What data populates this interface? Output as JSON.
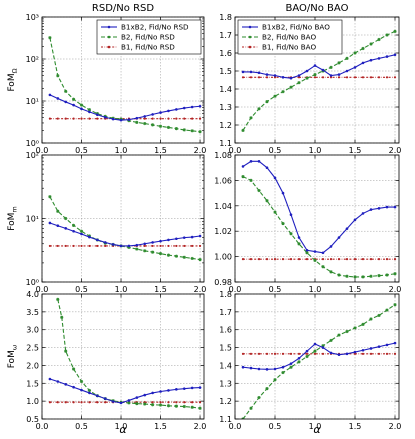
{
  "figure": {
    "col_titles": [
      "RSD/No RSD",
      "BAO/No BAO"
    ],
    "xlabel": "α",
    "row_ylabels": [
      {
        "main": "FoM",
        "sub": "Ω"
      },
      {
        "main": "FoM",
        "sub": "m"
      },
      {
        "main": "FoM",
        "sub": "ω"
      }
    ]
  },
  "colors": {
    "B1xB2": "#1f1fbf",
    "B2": "#2e8b2e",
    "B1": "#b22222"
  },
  "chart_data": [
    {
      "type": "line",
      "panel": "row1-left",
      "yscale": "log",
      "xlim": [
        0,
        2.05
      ],
      "ylim": [
        1,
        1000
      ],
      "xticks": [
        0.0,
        0.5,
        1.0,
        1.5,
        2.0
      ],
      "xtick_labels": [
        "0.0",
        "0.5",
        "1.0",
        "1.5",
        "2.0"
      ],
      "yticks": [
        1,
        10,
        100,
        1000
      ],
      "ytick_labels": [
        "10⁰",
        "10¹",
        "10²",
        "10³"
      ],
      "grid": true,
      "legend": "top-right",
      "series": [
        {
          "name": "B1xB2, Fid/No RSD",
          "color_key": "B1xB2",
          "x": [
            0.1,
            0.2,
            0.3,
            0.4,
            0.5,
            0.6,
            0.7,
            0.8,
            0.9,
            1.0,
            1.1,
            1.2,
            1.3,
            1.4,
            1.5,
            1.6,
            1.7,
            1.8,
            1.9,
            2.0
          ],
          "values": [
            14,
            11.5,
            9.5,
            8,
            6.5,
            5.5,
            4.7,
            4.1,
            3.7,
            3.5,
            3.6,
            3.9,
            4.3,
            4.8,
            5.3,
            5.8,
            6.3,
            6.8,
            7.2,
            7.5
          ]
        },
        {
          "name": "B2, Fid/No RSD",
          "color_key": "B2",
          "x": [
            0.1,
            0.2,
            0.3,
            0.4,
            0.5,
            0.6,
            0.7,
            0.8,
            0.9,
            1.0,
            1.1,
            1.2,
            1.3,
            1.4,
            1.5,
            1.6,
            1.7,
            1.8,
            1.9,
            2.0
          ],
          "values": [
            320,
            40,
            17,
            11,
            8,
            6.2,
            5,
            4.3,
            3.9,
            3.7,
            3.4,
            3.1,
            2.9,
            2.7,
            2.5,
            2.35,
            2.2,
            2.05,
            1.95,
            1.85
          ]
        },
        {
          "name": "B1, Fid/No RSD",
          "color_key": "B1",
          "x": [
            0.1,
            0.2,
            0.3,
            0.4,
            0.5,
            0.6,
            0.7,
            0.8,
            0.9,
            1.0,
            1.1,
            1.2,
            1.3,
            1.4,
            1.5,
            1.6,
            1.7,
            1.8,
            1.9,
            2.0
          ],
          "values": [
            3.8,
            3.8,
            3.8,
            3.8,
            3.8,
            3.8,
            3.8,
            3.8,
            3.8,
            3.8,
            3.8,
            3.8,
            3.8,
            3.8,
            3.8,
            3.8,
            3.8,
            3.8,
            3.8,
            3.8
          ]
        }
      ]
    },
    {
      "type": "line",
      "panel": "row1-right",
      "yscale": "linear",
      "xlim": [
        0,
        2.05
      ],
      "ylim": [
        1.1,
        1.8
      ],
      "xticks": [
        0.0,
        0.5,
        1.0,
        1.5,
        2.0
      ],
      "xtick_labels": [
        "0.0",
        "0.5",
        "1.0",
        "1.5",
        "2.0"
      ],
      "yticks": [
        1.1,
        1.2,
        1.3,
        1.4,
        1.5,
        1.6,
        1.7,
        1.8
      ],
      "ytick_labels": [
        "1.1",
        "1.2",
        "1.3",
        "1.4",
        "1.5",
        "1.6",
        "1.7",
        "1.8"
      ],
      "grid": true,
      "legend": "top-left",
      "series": [
        {
          "name": "B1xB2, Fid/No BAO",
          "color_key": "B1xB2",
          "x": [
            0.1,
            0.2,
            0.3,
            0.4,
            0.5,
            0.6,
            0.7,
            0.8,
            0.9,
            1.0,
            1.1,
            1.2,
            1.3,
            1.4,
            1.5,
            1.6,
            1.7,
            1.8,
            1.9,
            2.0
          ],
          "values": [
            1.495,
            1.495,
            1.49,
            1.48,
            1.475,
            1.465,
            1.46,
            1.475,
            1.5,
            1.53,
            1.505,
            1.475,
            1.48,
            1.5,
            1.52,
            1.545,
            1.56,
            1.57,
            1.58,
            1.59
          ]
        },
        {
          "name": "B2, Fid/No BAO",
          "color_key": "B2",
          "x": [
            0.1,
            0.2,
            0.3,
            0.4,
            0.5,
            0.6,
            0.7,
            0.8,
            0.9,
            1.0,
            1.1,
            1.2,
            1.3,
            1.4,
            1.5,
            1.6,
            1.7,
            1.8,
            1.9,
            2.0
          ],
          "values": [
            1.17,
            1.24,
            1.29,
            1.33,
            1.36,
            1.385,
            1.41,
            1.435,
            1.46,
            1.48,
            1.5,
            1.52,
            1.545,
            1.57,
            1.6,
            1.625,
            1.65,
            1.675,
            1.7,
            1.72
          ]
        },
        {
          "name": "B1, Fid/No BAO",
          "color_key": "B1",
          "x": [
            0.1,
            0.2,
            0.3,
            0.4,
            0.5,
            0.6,
            0.7,
            0.8,
            0.9,
            1.0,
            1.1,
            1.2,
            1.3,
            1.4,
            1.5,
            1.6,
            1.7,
            1.8,
            1.9,
            2.0
          ],
          "values": [
            1.465,
            1.465,
            1.465,
            1.465,
            1.465,
            1.465,
            1.465,
            1.465,
            1.465,
            1.465,
            1.465,
            1.465,
            1.465,
            1.465,
            1.465,
            1.465,
            1.465,
            1.465,
            1.465,
            1.465
          ]
        }
      ]
    },
    {
      "type": "line",
      "panel": "row2-left",
      "yscale": "log",
      "xlim": [
        0,
        2.05
      ],
      "ylim": [
        1,
        100
      ],
      "xticks": [
        0.0,
        0.5,
        1.0,
        1.5,
        2.0
      ],
      "xtick_labels": [
        "0.0",
        "0.5",
        "1.0",
        "1.5",
        "2.0"
      ],
      "yticks": [
        1,
        10,
        100
      ],
      "ytick_labels": [
        "10⁰",
        "10¹",
        "10²"
      ],
      "grid": true,
      "series": [
        {
          "color_key": "B1xB2",
          "x": [
            0.1,
            0.2,
            0.3,
            0.4,
            0.5,
            0.6,
            0.7,
            0.8,
            0.9,
            1.0,
            1.1,
            1.2,
            1.3,
            1.4,
            1.5,
            1.6,
            1.7,
            1.8,
            1.9,
            2.0
          ],
          "values": [
            8.5,
            7.7,
            7,
            6.3,
            5.7,
            5.1,
            4.6,
            4.2,
            3.9,
            3.7,
            3.7,
            3.8,
            4,
            4.2,
            4.4,
            4.6,
            4.8,
            5,
            5.1,
            5.3
          ]
        },
        {
          "color_key": "B2",
          "x": [
            0.1,
            0.2,
            0.3,
            0.4,
            0.5,
            0.6,
            0.7,
            0.8,
            0.9,
            1.0,
            1.1,
            1.2,
            1.3,
            1.4,
            1.5,
            1.6,
            1.7,
            1.8,
            1.9,
            2.0
          ],
          "values": [
            22,
            13,
            10,
            7.8,
            6.3,
            5.3,
            4.6,
            4.1,
            3.9,
            3.7,
            3.5,
            3.3,
            3.1,
            2.95,
            2.8,
            2.65,
            2.55,
            2.45,
            2.35,
            2.25
          ]
        },
        {
          "color_key": "B1",
          "x": [
            0.1,
            0.2,
            0.3,
            0.4,
            0.5,
            0.6,
            0.7,
            0.8,
            0.9,
            1.0,
            1.1,
            1.2,
            1.3,
            1.4,
            1.5,
            1.6,
            1.7,
            1.8,
            1.9,
            2.0
          ],
          "values": [
            3.7,
            3.7,
            3.7,
            3.7,
            3.7,
            3.7,
            3.7,
            3.7,
            3.7,
            3.7,
            3.7,
            3.7,
            3.7,
            3.7,
            3.7,
            3.7,
            3.7,
            3.7,
            3.7,
            3.7
          ]
        }
      ]
    },
    {
      "type": "line",
      "panel": "row2-right",
      "yscale": "linear",
      "xlim": [
        0,
        2.05
      ],
      "ylim": [
        0.98,
        1.08
      ],
      "xticks": [
        0.0,
        0.5,
        1.0,
        1.5,
        2.0
      ],
      "xtick_labels": [
        "0.0",
        "0.5",
        "1.0",
        "1.5",
        "2.0"
      ],
      "yticks": [
        0.98,
        1.0,
        1.02,
        1.04,
        1.06,
        1.08
      ],
      "ytick_labels": [
        "0.98",
        "1.00",
        "1.02",
        "1.04",
        "1.06",
        "1.08"
      ],
      "grid": true,
      "series": [
        {
          "color_key": "B1xB2",
          "x": [
            0.1,
            0.2,
            0.3,
            0.4,
            0.5,
            0.6,
            0.7,
            0.8,
            0.9,
            1.0,
            1.1,
            1.2,
            1.3,
            1.4,
            1.5,
            1.6,
            1.7,
            1.8,
            1.9,
            2.0
          ],
          "values": [
            1.071,
            1.075,
            1.075,
            1.07,
            1.062,
            1.05,
            1.033,
            1.015,
            1.005,
            1.004,
            1.003,
            1.008,
            1.015,
            1.022,
            1.029,
            1.034,
            1.037,
            1.038,
            1.039,
            1.039
          ]
        },
        {
          "color_key": "B2",
          "x": [
            0.1,
            0.2,
            0.3,
            0.4,
            0.5,
            0.6,
            0.7,
            0.8,
            0.9,
            1.0,
            1.1,
            1.2,
            1.3,
            1.4,
            1.5,
            1.6,
            1.7,
            1.8,
            1.9,
            2.0
          ],
          "values": [
            1.063,
            1.06,
            1.052,
            1.044,
            1.035,
            1.026,
            1.018,
            1.01,
            1.003,
            0.997,
            0.992,
            0.988,
            0.9855,
            0.9845,
            0.984,
            0.984,
            0.9845,
            0.985,
            0.9855,
            0.9865
          ]
        },
        {
          "color_key": "B1",
          "x": [
            0.1,
            0.2,
            0.3,
            0.4,
            0.5,
            0.6,
            0.7,
            0.8,
            0.9,
            1.0,
            1.1,
            1.2,
            1.3,
            1.4,
            1.5,
            1.6,
            1.7,
            1.8,
            1.9,
            2.0
          ],
          "values": [
            0.998,
            0.998,
            0.998,
            0.998,
            0.998,
            0.998,
            0.998,
            0.998,
            0.998,
            0.998,
            0.998,
            0.998,
            0.998,
            0.998,
            0.998,
            0.998,
            0.998,
            0.998,
            0.998,
            0.998
          ]
        }
      ]
    },
    {
      "type": "line",
      "panel": "row3-left",
      "yscale": "linear",
      "xlim": [
        0,
        2.05
      ],
      "ylim": [
        0.5,
        4.0
      ],
      "xticks": [
        0.0,
        0.5,
        1.0,
        1.5,
        2.0
      ],
      "xtick_labels": [
        "0.0",
        "0.5",
        "1.0",
        "1.5",
        "2.0"
      ],
      "yticks": [
        0.5,
        1.0,
        1.5,
        2.0,
        2.5,
        3.0,
        3.5,
        4.0
      ],
      "ytick_labels": [
        "0.5",
        "1.0",
        "1.5",
        "2.0",
        "2.5",
        "3.0",
        "3.5",
        "4.0"
      ],
      "grid": true,
      "series": [
        {
          "color_key": "B1xB2",
          "x": [
            0.1,
            0.2,
            0.3,
            0.4,
            0.5,
            0.6,
            0.7,
            0.8,
            0.9,
            1.0,
            1.1,
            1.2,
            1.3,
            1.4,
            1.5,
            1.6,
            1.7,
            1.8,
            1.9,
            2.0
          ],
          "values": [
            1.62,
            1.55,
            1.47,
            1.39,
            1.31,
            1.23,
            1.15,
            1.07,
            0.99,
            0.95,
            1.02,
            1.1,
            1.17,
            1.23,
            1.27,
            1.3,
            1.33,
            1.35,
            1.37,
            1.38
          ]
        },
        {
          "color_key": "B2",
          "x": [
            0.2,
            0.25,
            0.3,
            0.4,
            0.5,
            0.6,
            0.7,
            0.8,
            0.9,
            1.0,
            1.1,
            1.2,
            1.3,
            1.4,
            1.5,
            1.6,
            1.7,
            1.8,
            1.9,
            2.0
          ],
          "values": [
            3.85,
            3.35,
            2.4,
            1.9,
            1.55,
            1.3,
            1.15,
            1.07,
            1.01,
            0.97,
            0.95,
            0.93,
            0.92,
            0.9,
            0.89,
            0.87,
            0.86,
            0.85,
            0.83,
            0.8
          ]
        },
        {
          "color_key": "B1",
          "x": [
            0.1,
            0.2,
            0.3,
            0.4,
            0.5,
            0.6,
            0.7,
            0.8,
            0.9,
            1.0,
            1.1,
            1.2,
            1.3,
            1.4,
            1.5,
            1.6,
            1.7,
            1.8,
            1.9,
            2.0
          ],
          "values": [
            0.97,
            0.97,
            0.97,
            0.97,
            0.97,
            0.97,
            0.97,
            0.97,
            0.97,
            0.97,
            0.97,
            0.97,
            0.97,
            0.97,
            0.97,
            0.97,
            0.97,
            0.97,
            0.97,
            0.97
          ]
        }
      ]
    },
    {
      "type": "line",
      "panel": "row3-right",
      "yscale": "linear",
      "xlim": [
        0,
        2.05
      ],
      "ylim": [
        1.1,
        1.8
      ],
      "xticks": [
        0.0,
        0.5,
        1.0,
        1.5,
        2.0
      ],
      "xtick_labels": [
        "0.0",
        "0.5",
        "1.0",
        "1.5",
        "2.0"
      ],
      "yticks": [
        1.1,
        1.2,
        1.3,
        1.4,
        1.5,
        1.6,
        1.7,
        1.8
      ],
      "ytick_labels": [
        "1.1",
        "1.2",
        "1.3",
        "1.4",
        "1.5",
        "1.6",
        "1.7",
        "1.8"
      ],
      "grid": true,
      "series": [
        {
          "color_key": "B1xB2",
          "x": [
            0.1,
            0.2,
            0.3,
            0.4,
            0.5,
            0.6,
            0.7,
            0.8,
            0.9,
            1.0,
            1.1,
            1.2,
            1.3,
            1.4,
            1.5,
            1.6,
            1.7,
            1.8,
            1.9,
            2.0
          ],
          "values": [
            1.39,
            1.385,
            1.38,
            1.378,
            1.38,
            1.39,
            1.41,
            1.44,
            1.48,
            1.52,
            1.5,
            1.47,
            1.46,
            1.465,
            1.475,
            1.485,
            1.495,
            1.505,
            1.515,
            1.525
          ]
        },
        {
          "color_key": "B2",
          "x": [
            0.1,
            0.2,
            0.3,
            0.4,
            0.5,
            0.6,
            0.7,
            0.8,
            0.9,
            1.0,
            1.1,
            1.2,
            1.3,
            1.4,
            1.5,
            1.6,
            1.7,
            1.8,
            1.9,
            2.0
          ],
          "values": [
            1.1,
            1.16,
            1.22,
            1.27,
            1.32,
            1.36,
            1.39,
            1.42,
            1.45,
            1.48,
            1.51,
            1.54,
            1.57,
            1.59,
            1.61,
            1.63,
            1.66,
            1.68,
            1.71,
            1.74
          ]
        },
        {
          "color_key": "B1",
          "x": [
            0.1,
            0.2,
            0.3,
            0.4,
            0.5,
            0.6,
            0.7,
            0.8,
            0.9,
            1.0,
            1.1,
            1.2,
            1.3,
            1.4,
            1.5,
            1.6,
            1.7,
            1.8,
            1.9,
            2.0
          ],
          "values": [
            1.465,
            1.465,
            1.465,
            1.465,
            1.465,
            1.465,
            1.465,
            1.465,
            1.465,
            1.465,
            1.465,
            1.465,
            1.465,
            1.465,
            1.465,
            1.465,
            1.465,
            1.465,
            1.465,
            1.465
          ]
        }
      ]
    }
  ]
}
